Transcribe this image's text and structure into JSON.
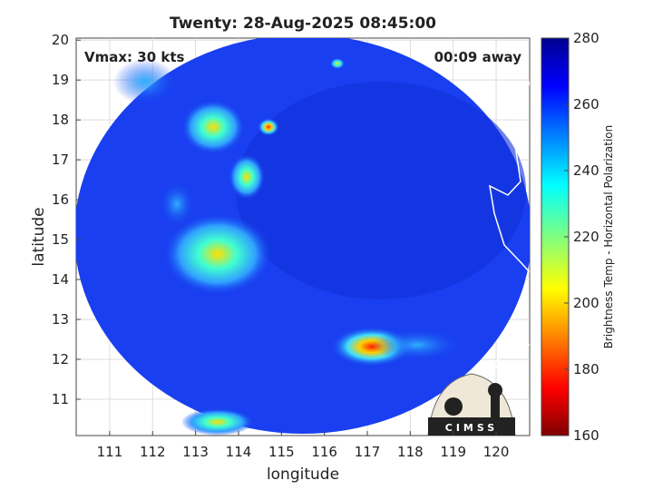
{
  "chart_data": {
    "type": "map",
    "title": "Twenty: 28-Aug-2025 08:45:00",
    "annotations": [
      "Vmax: 30 kts",
      "00:09 away"
    ],
    "xlabel": "longitude",
    "ylabel": "latitude",
    "xlim": [
      110.22,
      120.78
    ],
    "ylim": [
      10.09,
      20.05
    ],
    "xticks": [
      111,
      112,
      113,
      114,
      115,
      116,
      117,
      118,
      119,
      120
    ],
    "yticks": [
      11,
      12,
      13,
      14,
      15,
      16,
      17,
      18,
      19,
      20
    ],
    "grid": true,
    "colorbar": {
      "label": "Brightness Temp - Horizontal Polarization",
      "clim": [
        160,
        280
      ],
      "ticks": [
        160,
        180,
        200,
        220,
        240,
        260,
        280
      ]
    },
    "logo": "CIMSS"
  }
}
